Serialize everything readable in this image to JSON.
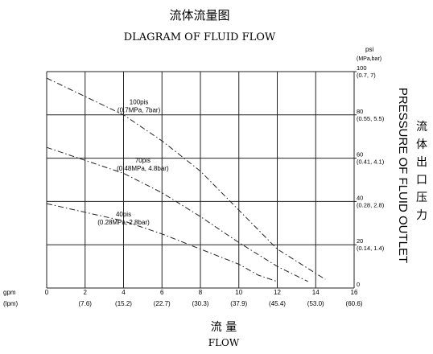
{
  "title_cn": "流体流量图",
  "title_en": "DLAGRAM OF FLUID FLOW",
  "right_unit": "psi",
  "right_unit_sub": "(MPa,bar)",
  "x_unit_top": "gpm",
  "x_unit_bottom": "(lpm)",
  "xlabel_cn": "流 量",
  "xlabel_en": "FLOW",
  "ylabel_en": "PRESSURE OF FLUID OUTLET",
  "ylabel_cn": [
    "流",
    "体",
    "出",
    "口",
    "压",
    "力"
  ],
  "chart_data": {
    "type": "line",
    "xlim": [
      0,
      16
    ],
    "ylim": [
      0,
      100
    ],
    "grid": true,
    "x_ticks": [
      {
        "value": 0,
        "label": "0",
        "sub": ""
      },
      {
        "value": 2,
        "label": "2",
        "sub": "(7.6)"
      },
      {
        "value": 4,
        "label": "4",
        "sub": "(15.2)"
      },
      {
        "value": 6,
        "label": "6",
        "sub": "(22.7)"
      },
      {
        "value": 8,
        "label": "8",
        "sub": "(30.3)"
      },
      {
        "value": 10,
        "label": "10",
        "sub": "(37.9)"
      },
      {
        "value": 12,
        "label": "12",
        "sub": "(45.4)"
      },
      {
        "value": 14,
        "label": "14",
        "sub": "(53.0)"
      },
      {
        "value": 16,
        "label": "16",
        "sub": "(60.6)"
      }
    ],
    "y_ticks": [
      {
        "value": 0,
        "label": "0",
        "sub": ""
      },
      {
        "value": 20,
        "label": "20",
        "sub": "(0.14, 1.4)"
      },
      {
        "value": 40,
        "label": "40",
        "sub": "(0.28, 2.8)"
      },
      {
        "value": 60,
        "label": "60",
        "sub": "(0.41, 4.1)"
      },
      {
        "value": 80,
        "label": "80",
        "sub": "(0.55, 5.5)"
      },
      {
        "value": 100,
        "label": "100",
        "sub": "(0.7, 7)"
      }
    ],
    "series": [
      {
        "name": "100pis",
        "label_line2": "(0.7MPa, 7bar)",
        "label_at": [
          4.8,
          85
        ],
        "points": [
          [
            0,
            97
          ],
          [
            4,
            80
          ],
          [
            6,
            68
          ],
          [
            8,
            54
          ],
          [
            10,
            36
          ],
          [
            12,
            18
          ],
          [
            14.5,
            4
          ]
        ]
      },
      {
        "name": "70pis",
        "label_line2": "(0.48MPa, 4.8bar)",
        "label_at": [
          5,
          58
        ],
        "points": [
          [
            0,
            65
          ],
          [
            4,
            53
          ],
          [
            6,
            44
          ],
          [
            8,
            33
          ],
          [
            10,
            21
          ],
          [
            12,
            10
          ],
          [
            13.6,
            3
          ]
        ]
      },
      {
        "name": "40pis",
        "label_line2": "(0.28MPa, 2.8bar)",
        "label_at": [
          4,
          33
        ],
        "points": [
          [
            0,
            39
          ],
          [
            4,
            31
          ],
          [
            6,
            25
          ],
          [
            8,
            18
          ],
          [
            10,
            11
          ],
          [
            11,
            6
          ],
          [
            12,
            3
          ]
        ]
      }
    ]
  }
}
